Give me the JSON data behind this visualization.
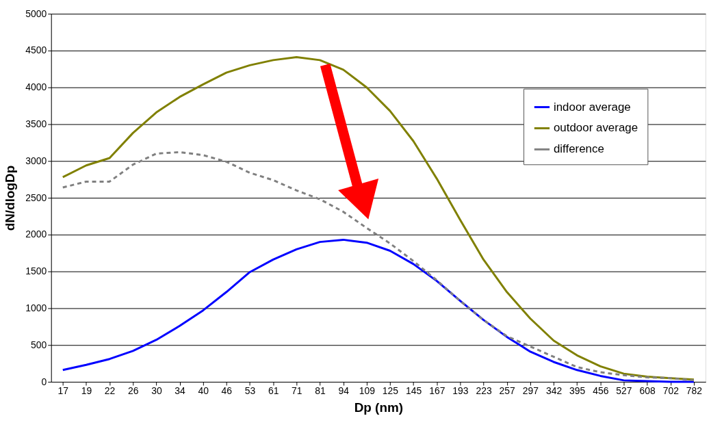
{
  "chart_data": {
    "type": "line",
    "xlabel": "Dp (nm)",
    "ylabel": "dN/dlogDp",
    "categories": [
      "17",
      "19",
      "22",
      "26",
      "30",
      "34",
      "40",
      "46",
      "53",
      "61",
      "71",
      "81",
      "94",
      "109",
      "125",
      "145",
      "167",
      "193",
      "223",
      "257",
      "297",
      "342",
      "395",
      "456",
      "527",
      "608",
      "702",
      "782"
    ],
    "series": [
      {
        "name": "indoor average",
        "color": "#0000ff",
        "line_style": "solid",
        "values": [
          160,
          230,
          310,
          420,
          570,
          760,
          970,
          1220,
          1490,
          1660,
          1800,
          1900,
          1930,
          1890,
          1780,
          1600,
          1370,
          1100,
          840,
          610,
          410,
          270,
          160,
          80,
          20,
          10,
          0,
          0
        ]
      },
      {
        "name": "outdoor average",
        "color": "#808000",
        "line_style": "solid",
        "values": [
          2780,
          2940,
          3040,
          3380,
          3660,
          3870,
          4040,
          4200,
          4300,
          4370,
          4410,
          4370,
          4240,
          4000,
          3680,
          3270,
          2760,
          2200,
          1660,
          1220,
          860,
          560,
          360,
          210,
          110,
          70,
          50,
          30
        ]
      },
      {
        "name": "difference",
        "color": "#808080",
        "line_style": "dashed",
        "values": [
          2640,
          2720,
          2720,
          2950,
          3100,
          3120,
          3080,
          2990,
          2840,
          2740,
          2600,
          2480,
          2310,
          2090,
          1880,
          1640,
          1380,
          1100,
          840,
          620,
          480,
          340,
          200,
          130,
          90,
          60,
          50,
          20
        ]
      }
    ],
    "ylim": [
      0,
      5000
    ],
    "yticks": [
      0,
      500,
      1000,
      1500,
      2000,
      2500,
      3000,
      3500,
      4000,
      4500,
      5000
    ],
    "grid": "y",
    "legend": "top right",
    "marker": "none"
  }
}
